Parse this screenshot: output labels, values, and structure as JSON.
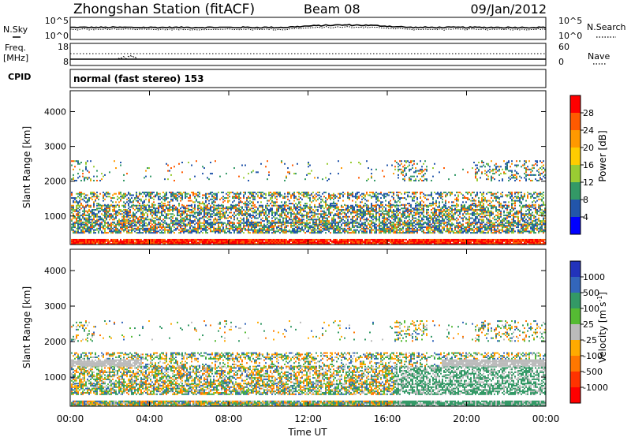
{
  "header": {
    "title": "Zhongshan Station (fitACF)",
    "beam": "Beam 08",
    "date": "09/Jan/2012"
  },
  "noise_panel": {
    "left_label": "N.Sky",
    "right_label": "N.Search",
    "left_ticks": [
      "10^5",
      "10^0"
    ],
    "right_ticks": [
      "10^5",
      "10^0"
    ]
  },
  "freq_panel": {
    "left_label_1": "Freq.",
    "left_label_2": "[MHz]",
    "right_label": "Nave",
    "left_ticks": [
      "18",
      "8"
    ],
    "right_ticks": [
      "60",
      "0"
    ]
  },
  "cpid_panel": {
    "label": "CPID",
    "mode": "normal (fast stereo) 153"
  },
  "chart_data": [
    {
      "type": "heatmap",
      "name": "power",
      "ylabel": "Slant Range [km]",
      "ylim": [
        180,
        4600
      ],
      "yticks": [
        "1000",
        "2000",
        "3000",
        "4000"
      ],
      "colorbar_label": "Power [dB]",
      "colorbar_ticks": [
        "28",
        "24",
        "20",
        "16",
        "12",
        "8",
        "4"
      ],
      "colorbar_colors": [
        "#ff0000",
        "#ff5a00",
        "#ff9900",
        "#ffcc00",
        "#99cc33",
        "#339966",
        "#2255aa",
        "#0000ff"
      ]
    },
    {
      "type": "heatmap",
      "name": "velocity",
      "ylabel": "Slant Range [km]",
      "ylim": [
        180,
        4600
      ],
      "yticks": [
        "1000",
        "2000",
        "3000",
        "4000"
      ],
      "colorbar_label": "Velocity [m s",
      "colorbar_label_sup": "-1",
      "colorbar_label_end": "]",
      "colorbar_ticks": [
        "1000",
        "500",
        "100",
        "25",
        "-25",
        "-100",
        "-500",
        "-1000"
      ],
      "colorbar_colors": [
        "#2233bb",
        "#3366bb",
        "#339966",
        "#55bb33",
        "#bbbbbb",
        "#ffaa00",
        "#ff7700",
        "#ff3300",
        "#ff0000"
      ]
    }
  ],
  "xaxis": {
    "label": "Time UT",
    "ticks": [
      "00:00",
      "04:00",
      "08:00",
      "12:00",
      "16:00",
      "20:00",
      "00:00"
    ]
  }
}
